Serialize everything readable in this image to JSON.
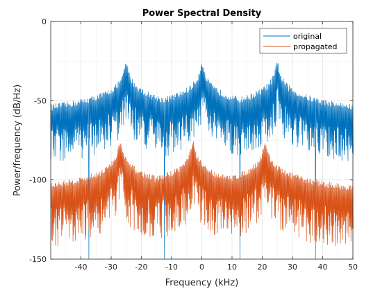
{
  "chart_data": {
    "type": "line",
    "title": "Power Spectral Density",
    "xlabel": "Frequency (kHz)",
    "ylabel": "Power/frequency (dB/Hz)",
    "xlim": [
      -50,
      50
    ],
    "ylim": [
      -150,
      0
    ],
    "xticks": [
      -40,
      -30,
      -20,
      -10,
      0,
      10,
      20,
      30,
      40,
      50
    ],
    "xtick_labels": [
      "-40",
      "-30",
      "-20",
      "-10",
      "0",
      "10",
      "20",
      "30",
      "40",
      "50"
    ],
    "yticks": [
      -150,
      -100,
      -50,
      0
    ],
    "ytick_labels": [
      "-150",
      "-100",
      "-50",
      "0"
    ],
    "grid": true,
    "legend_position": "top-right",
    "series": [
      {
        "name": "original",
        "color": "#0072bd",
        "peaks": [
          {
            "x": -25,
            "y": -27
          },
          {
            "x": 0,
            "y": -27
          },
          {
            "x": 25,
            "y": -27
          }
        ],
        "floor_between_peaks": -70,
        "deep_nulls_x": [
          -37.5,
          -12.5,
          12.5,
          37.5
        ]
      },
      {
        "name": "propagated",
        "color": "#d95319",
        "peaks": [
          {
            "x": -27,
            "y": -77
          },
          {
            "x": -3,
            "y": -77
          },
          {
            "x": 21,
            "y": -77
          }
        ],
        "floor_between_peaks": -120
      }
    ]
  }
}
